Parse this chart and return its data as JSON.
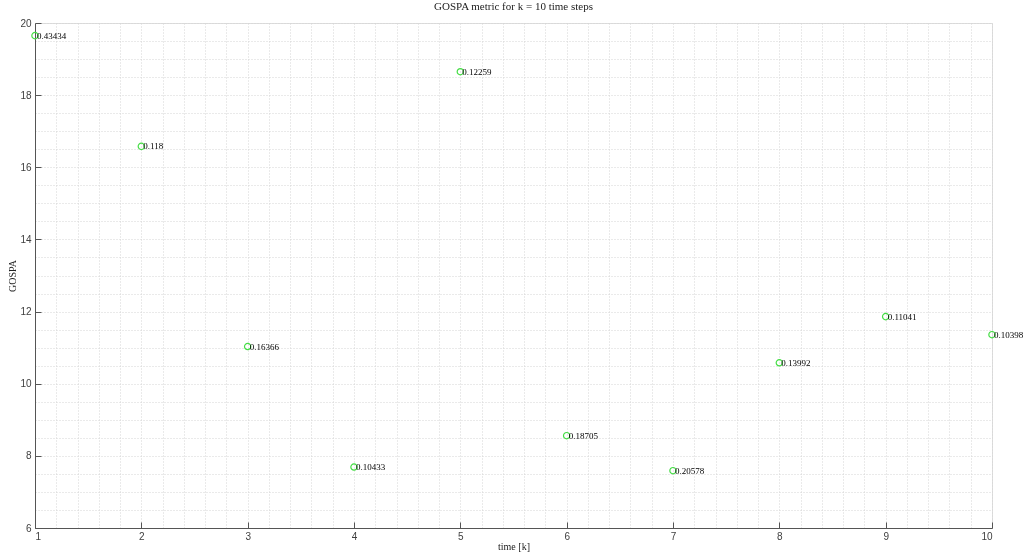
{
  "chart_data": {
    "type": "scatter",
    "title": "GOSPA metric for k = 10 time steps",
    "xlabel": "time [k]",
    "ylabel": "GOSPA",
    "x": [
      1,
      2,
      3,
      4,
      5,
      6,
      7,
      8,
      9,
      10
    ],
    "series": [
      {
        "color": "#44dd44",
        "values": [
          19.65,
          16.58,
          11.03,
          7.69,
          18.65,
          8.56,
          7.59,
          10.58,
          11.86,
          11.36
        ]
      }
    ],
    "marker": "circle",
    "grid": true,
    "xlim": [
      1,
      10
    ],
    "ylim": [
      6,
      20
    ],
    "xticks": [
      1,
      2,
      3,
      4,
      5,
      6,
      7,
      8,
      9,
      10
    ],
    "yticks": [
      6,
      8,
      10,
      12,
      14,
      16,
      18,
      20
    ],
    "annotations": [
      {
        "text": "0.43434",
        "x": 1,
        "y": 19.65
      },
      {
        "text": "0.118",
        "x": 2,
        "y": 16.58
      },
      {
        "text": "0.16366",
        "x": 3,
        "y": 11.03
      },
      {
        "text": "0.10433",
        "x": 4,
        "y": 7.69
      },
      {
        "text": "0.12259",
        "x": 5,
        "y": 18.65
      },
      {
        "text": "0.18705",
        "x": 6,
        "y": 8.56
      },
      {
        "text": "0.20578",
        "x": 7,
        "y": 7.59
      },
      {
        "text": "0.13992",
        "x": 8,
        "y": 10.58
      },
      {
        "text": "0.11041",
        "x": 9,
        "y": 11.86
      },
      {
        "text": "0.10398",
        "x": 10,
        "y": 11.36
      }
    ]
  }
}
